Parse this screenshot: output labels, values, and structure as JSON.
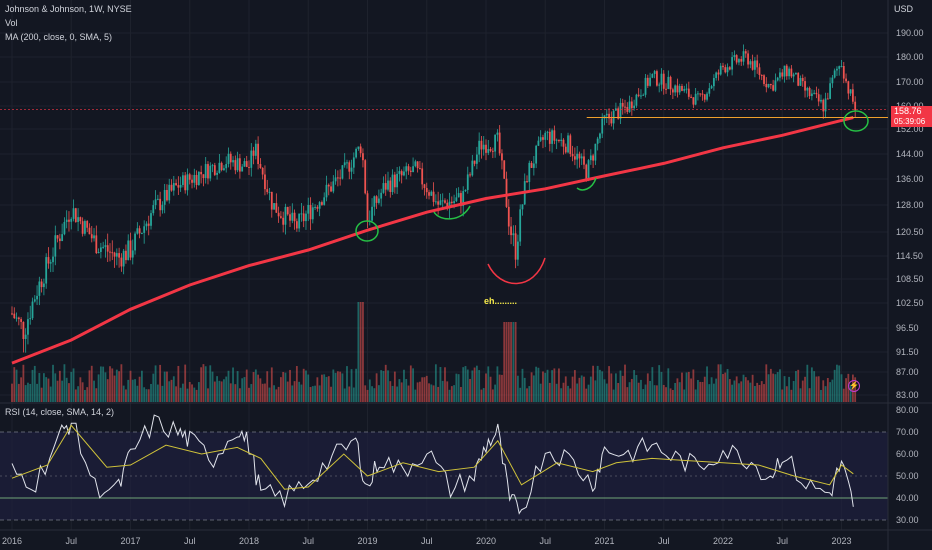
{
  "legend": {
    "symbol_line": "Johnson & Johnson, 1W, NYSE",
    "volume_line": "Vol",
    "ma_line": "MA (200, close, 0, SMA, 5)",
    "rsi_line": "RSI (14, close, SMA, 14, 2)"
  },
  "price_axis": {
    "currency": "USD",
    "current_price": "158.76",
    "countdown": "05:39:06"
  },
  "annotation_text": "eh.........",
  "colors": {
    "background": "#131722",
    "up_candle": "#26a69a",
    "down_candle": "#ef5350",
    "ma_line": "#f23645",
    "support_line": "#f0a02c",
    "pen": "#26c045",
    "dip_pen": "#f23645",
    "rsi_line": "#e0e3eb",
    "rsi_ma": "#cfc23a",
    "rsi_band": "#1e1f3d"
  },
  "chart_data": [
    {
      "type": "candlestick",
      "title": "Johnson & Johnson, 1W, NYSE",
      "x_ticks": [
        "2016",
        "Jul",
        "2017",
        "Jul",
        "2018",
        "Jul",
        "2019",
        "Jul",
        "2020",
        "Jul",
        "2021",
        "Jul",
        "2022",
        "Jul",
        "2023"
      ],
      "y_ticks": [
        83.0,
        87.0,
        91.5,
        96.5,
        102.5,
        108.5,
        114.5,
        120.5,
        128.0,
        136.0,
        144.0,
        152.0,
        160.0,
        170.0,
        180.0,
        190.0
      ],
      "ylim": [
        83,
        195
      ],
      "ma": {
        "name": "MA (200, close, 0, SMA, 5)",
        "x": [
          2016.0,
          2016.5,
          2017.0,
          2017.5,
          2018.0,
          2018.5,
          2019.0,
          2019.5,
          2020.0,
          2020.5,
          2021.0,
          2021.5,
          2022.0,
          2022.5,
          2023.0,
          2023.1
        ],
        "values": [
          89,
          94,
          101,
          107,
          112,
          116,
          121,
          126,
          130,
          133,
          137,
          141,
          146,
          150,
          155,
          156
        ]
      },
      "close": {
        "x": [
          2016.0,
          2016.1,
          2016.2,
          2016.35,
          2016.5,
          2016.7,
          2016.9,
          2017.0,
          2017.2,
          2017.4,
          2017.6,
          2017.8,
          2018.0,
          2018.05,
          2018.2,
          2018.4,
          2018.6,
          2018.8,
          2018.95,
          2019.0,
          2019.15,
          2019.4,
          2019.6,
          2019.8,
          2019.95,
          2020.1,
          2020.2,
          2020.25,
          2020.35,
          2020.5,
          2020.7,
          2020.85,
          2021.0,
          2021.2,
          2021.4,
          2021.6,
          2021.8,
          2022.0,
          2022.2,
          2022.4,
          2022.55,
          2022.7,
          2022.85,
          2022.95,
          2023.0,
          2023.05,
          2023.12
        ],
        "values": [
          100,
          96,
          105,
          116,
          127,
          118,
          114,
          116,
          127,
          134,
          138,
          142,
          140,
          146,
          128,
          122,
          130,
          138,
          147,
          124,
          134,
          139,
          128,
          130,
          147,
          148,
          122,
          116,
          138,
          150,
          147,
          138,
          155,
          160,
          172,
          168,
          162,
          176,
          180,
          168,
          175,
          166,
          160,
          174,
          178,
          168,
          158.76
        ]
      },
      "support_level": 156
    },
    {
      "type": "bar",
      "title": "Vol"
    },
    {
      "type": "line",
      "title": "RSI (14, close, SMA, 14, 2)",
      "y_ticks": [
        30.0,
        40.0,
        50.0,
        60.0,
        70.0,
        80.0
      ],
      "ylim": [
        28,
        82
      ],
      "bands": [
        30,
        70
      ],
      "mid": 50,
      "rsi": {
        "x": [
          2016.0,
          2016.2,
          2016.4,
          2016.5,
          2016.7,
          2016.9,
          2017.0,
          2017.2,
          2017.4,
          2017.5,
          2017.7,
          2017.9,
          2018.0,
          2018.1,
          2018.3,
          2018.5,
          2018.7,
          2018.9,
          2019.0,
          2019.1,
          2019.3,
          2019.5,
          2019.7,
          2019.9,
          2020.0,
          2020.1,
          2020.2,
          2020.3,
          2020.5,
          2020.7,
          2020.9,
          2021.0,
          2021.2,
          2021.4,
          2021.6,
          2021.8,
          2022.0,
          2022.2,
          2022.4,
          2022.5,
          2022.7,
          2022.9,
          2023.0,
          2023.1
        ],
        "values": [
          52,
          47,
          68,
          75,
          45,
          44,
          60,
          74,
          70,
          66,
          58,
          72,
          64,
          42,
          40,
          48,
          58,
          66,
          44,
          58,
          52,
          62,
          44,
          50,
          64,
          70,
          38,
          35,
          62,
          58,
          46,
          62,
          60,
          64,
          58,
          54,
          62,
          58,
          50,
          60,
          46,
          42,
          56,
          36
        ]
      },
      "rsi_ma": {
        "x": [
          2016.0,
          2016.3,
          2016.5,
          2016.8,
          2017.0,
          2017.3,
          2017.6,
          2017.9,
          2018.1,
          2018.3,
          2018.5,
          2018.8,
          2019.0,
          2019.3,
          2019.6,
          2019.9,
          2020.1,
          2020.3,
          2020.6,
          2020.9,
          2021.1,
          2021.4,
          2021.7,
          2022.0,
          2022.3,
          2022.6,
          2022.9,
          2023.0,
          2023.1
        ],
        "values": [
          49,
          55,
          73,
          54,
          55,
          64,
          60,
          63,
          58,
          44,
          45,
          60,
          50,
          56,
          52,
          54,
          66,
          46,
          56,
          52,
          56,
          58,
          57,
          56,
          55,
          50,
          46,
          55,
          51
        ]
      }
    }
  ]
}
